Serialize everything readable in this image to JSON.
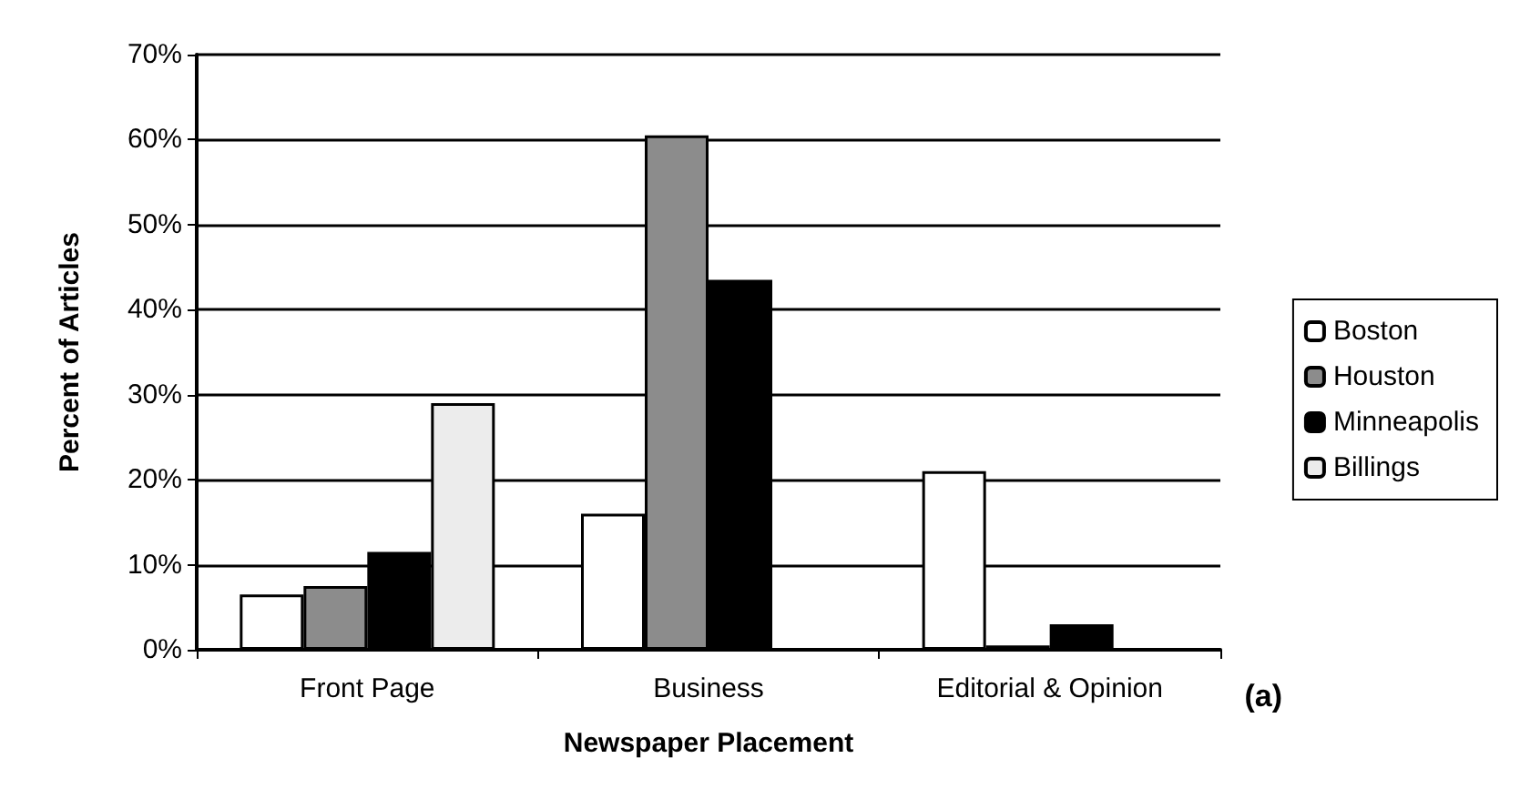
{
  "chart_data": {
    "type": "bar",
    "xlabel": "Newspaper Placement",
    "ylabel": "Percent of Articles",
    "categories": [
      "Front Page",
      "Business",
      "Editorial & Opinion"
    ],
    "series": [
      {
        "name": "Boston",
        "color": "#ffffff",
        "values": [
          6.5,
          16,
          21
        ]
      },
      {
        "name": "Houston",
        "color": "#8c8c8c",
        "values": [
          7.5,
          60.5,
          0.5
        ]
      },
      {
        "name": "Minneapolis",
        "color": "#000000",
        "values": [
          11.5,
          43.5,
          3
        ]
      },
      {
        "name": "Billings",
        "color": "#ececec",
        "values": [
          29,
          null,
          null
        ]
      }
    ],
    "ylim": [
      0,
      70
    ],
    "yticks": [
      {
        "value": 0,
        "label": "0%"
      },
      {
        "value": 10,
        "label": "10%"
      },
      {
        "value": 20,
        "label": "20%"
      },
      {
        "value": 30,
        "label": "30%"
      },
      {
        "value": 40,
        "label": "40%"
      },
      {
        "value": 50,
        "label": "50%"
      },
      {
        "value": 60,
        "label": "60%"
      },
      {
        "value": 70,
        "label": "70%"
      }
    ],
    "grid": "y",
    "legend": "right",
    "annotations": [
      "(a)"
    ]
  }
}
